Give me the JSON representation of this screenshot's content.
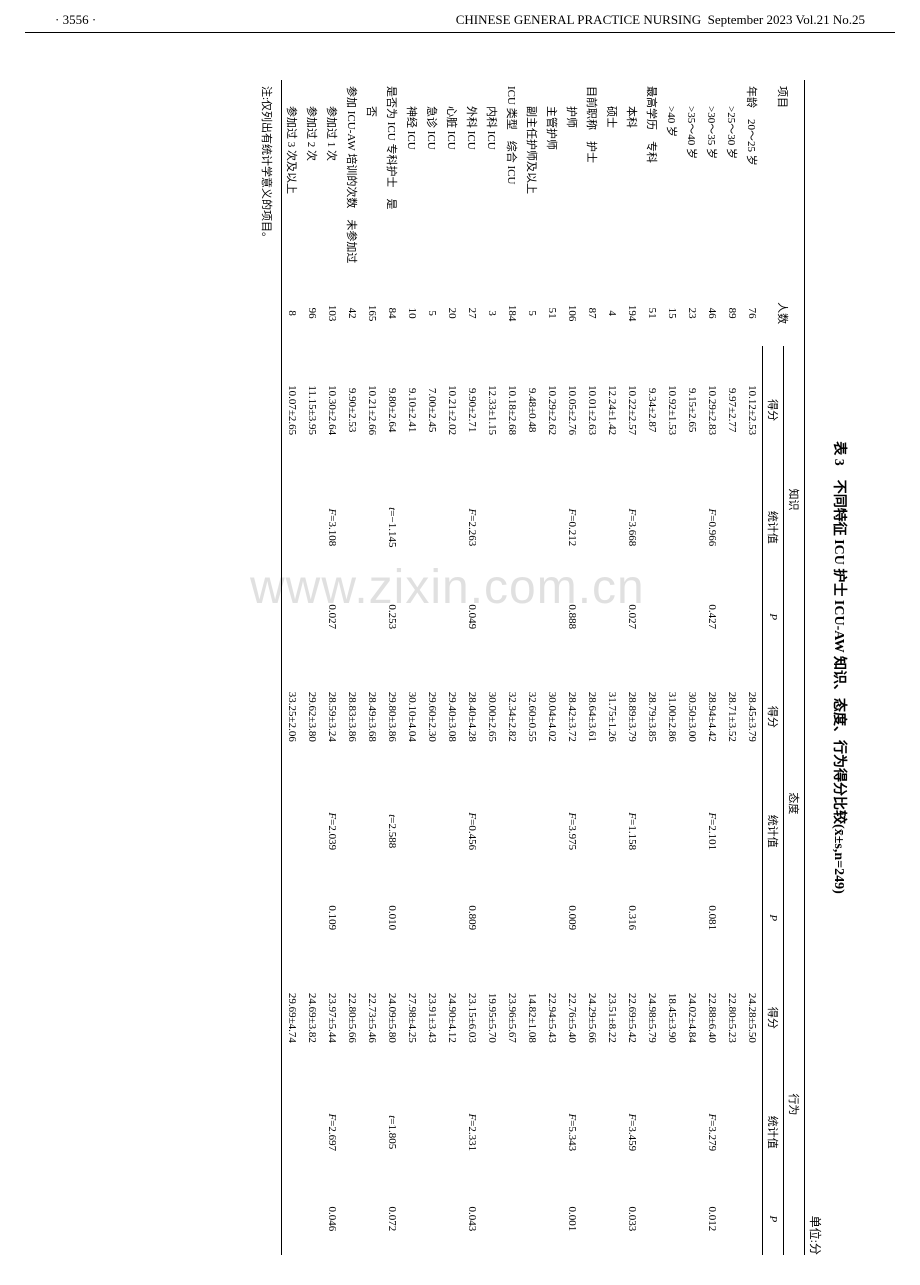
{
  "header": {
    "page_num": "· 3556 ·",
    "journal": "CHINESE GENERAL PRACTICE NURSING",
    "issue": "September 2023 Vol.21 No.25"
  },
  "watermark": "www.zixin.com.cn",
  "table": {
    "title": "表 3　不同特征 ICU 护士 ICU-AW 知识、态度、行为得分比较(x̄±s,n=249)",
    "unit": "单位:分",
    "head1": {
      "item": "项目",
      "n": "人数",
      "g1": "知识",
      "g2": "态度",
      "g3": "行为"
    },
    "head2": {
      "score": "得分",
      "stat": "统计值",
      "p": "P"
    },
    "note": "注:仅列出有统计学意义的项目。",
    "rows": [
      {
        "cat": "年龄",
        "lbl": "20～25 岁",
        "n": "76",
        "s1": "10.12±2.53",
        "st1": "",
        "p1": "",
        "s2": "28.45±3.79",
        "st2": "",
        "p2": "",
        "s3": "24.28±5.50",
        "st3": "",
        "p3": ""
      },
      {
        "cat": "",
        "lbl": ">25～30 岁",
        "n": "89",
        "s1": "9.97±2.77",
        "st1": "",
        "p1": "",
        "s2": "28.71±3.52",
        "st2": "",
        "p2": "",
        "s3": "22.80±5.23",
        "st3": "",
        "p3": ""
      },
      {
        "cat": "",
        "lbl": ">30～35 岁",
        "n": "46",
        "s1": "10.29±2.83",
        "st1": "F=0.966",
        "p1": "0.427",
        "s2": "28.94±4.42",
        "st2": "F=2.101",
        "p2": "0.081",
        "s3": "22.88±6.40",
        "st3": "F=3.279",
        "p3": "0.012"
      },
      {
        "cat": "",
        "lbl": ">35～40 岁",
        "n": "23",
        "s1": "9.15±2.65",
        "st1": "",
        "p1": "",
        "s2": "30.50±3.00",
        "st2": "",
        "p2": "",
        "s3": "24.02±4.84",
        "st3": "",
        "p3": ""
      },
      {
        "cat": "",
        "lbl": ">40 岁",
        "n": "15",
        "s1": "10.92±1.53",
        "st1": "",
        "p1": "",
        "s2": "31.00±2.86",
        "st2": "",
        "p2": "",
        "s3": "18.45±3.90",
        "st3": "",
        "p3": ""
      },
      {
        "cat": "最高学历",
        "lbl": "专科",
        "n": "51",
        "s1": "9.34±2.87",
        "st1": "",
        "p1": "",
        "s2": "28.79±3.85",
        "st2": "",
        "p2": "",
        "s3": "24.98±5.79",
        "st3": "",
        "p3": ""
      },
      {
        "cat": "",
        "lbl": "本科",
        "n": "194",
        "s1": "10.22±2.57",
        "st1": "F=3.668",
        "p1": "0.027",
        "s2": "28.89±3.79",
        "st2": "F=1.158",
        "p2": "0.316",
        "s3": "22.69±5.42",
        "st3": "F=3.459",
        "p3": "0.033"
      },
      {
        "cat": "",
        "lbl": "硕士",
        "n": "4",
        "s1": "12.24±1.42",
        "st1": "",
        "p1": "",
        "s2": "31.75±1.26",
        "st2": "",
        "p2": "",
        "s3": "23.51±8.22",
        "st3": "",
        "p3": ""
      },
      {
        "cat": "目前职称",
        "lbl": "护士",
        "n": "87",
        "s1": "10.01±2.63",
        "st1": "",
        "p1": "",
        "s2": "28.64±3.61",
        "st2": "",
        "p2": "",
        "s3": "24.29±5.66",
        "st3": "",
        "p3": ""
      },
      {
        "cat": "",
        "lbl": "护师",
        "n": "106",
        "s1": "10.05±2.76",
        "st1": "F=0.212",
        "p1": "0.888",
        "s2": "28.42±3.72",
        "st2": "F=3.975",
        "p2": "0.009",
        "s3": "22.76±5.40",
        "st3": "F=5.343",
        "p3": "0.001"
      },
      {
        "cat": "",
        "lbl": "主管护师",
        "n": "51",
        "s1": "10.29±2.62",
        "st1": "",
        "p1": "",
        "s2": "30.04±4.02",
        "st2": "",
        "p2": "",
        "s3": "22.94±5.43",
        "st3": "",
        "p3": ""
      },
      {
        "cat": "",
        "lbl": "副主任护师及以上",
        "n": "5",
        "s1": "9.48±0.48",
        "st1": "",
        "p1": "",
        "s2": "32.60±0.55",
        "st2": "",
        "p2": "",
        "s3": "14.82±1.08",
        "st3": "",
        "p3": ""
      },
      {
        "cat": "ICU 类型",
        "lbl": "综合 ICU",
        "n": "184",
        "s1": "10.18±2.68",
        "st1": "",
        "p1": "",
        "s2": "32.34±2.82",
        "st2": "",
        "p2": "",
        "s3": "23.96±5.67",
        "st3": "",
        "p3": ""
      },
      {
        "cat": "",
        "lbl": "内科 ICU",
        "n": "3",
        "s1": "12.33±1.15",
        "st1": "",
        "p1": "",
        "s2": "30.00±2.65",
        "st2": "",
        "p2": "",
        "s3": "19.95±5.70",
        "st3": "",
        "p3": ""
      },
      {
        "cat": "",
        "lbl": "外科 ICU",
        "n": "27",
        "s1": "9.90±2.71",
        "st1": "F=2.263",
        "p1": "0.049",
        "s2": "28.40±4.28",
        "st2": "F=0.456",
        "p2": "0.809",
        "s3": "23.15±6.03",
        "st3": "F=2.331",
        "p3": "0.043"
      },
      {
        "cat": "",
        "lbl": "心脏 ICU",
        "n": "20",
        "s1": "10.21±2.02",
        "st1": "",
        "p1": "",
        "s2": "29.40±3.08",
        "st2": "",
        "p2": "",
        "s3": "24.90±4.12",
        "st3": "",
        "p3": ""
      },
      {
        "cat": "",
        "lbl": "急诊 ICU",
        "n": "5",
        "s1": "7.00±2.45",
        "st1": "",
        "p1": "",
        "s2": "29.60±2.30",
        "st2": "",
        "p2": "",
        "s3": "23.91±3.43",
        "st3": "",
        "p3": ""
      },
      {
        "cat": "",
        "lbl": "神经 ICU",
        "n": "10",
        "s1": "9.10±2.41",
        "st1": "",
        "p1": "",
        "s2": "30.10±4.04",
        "st2": "",
        "p2": "",
        "s3": "27.98±4.25",
        "st3": "",
        "p3": ""
      },
      {
        "cat": "是否为 ICU 专科护士",
        "lbl": "是",
        "n": "84",
        "s1": "9.80±2.64",
        "st1": "t=−1.145",
        "p1": "0.253",
        "s2": "29.80±3.86",
        "st2": "t=2.588",
        "p2": "0.010",
        "s3": "24.09±5.80",
        "st3": "t=1.805",
        "p3": "0.072"
      },
      {
        "cat": "",
        "lbl": "否",
        "n": "165",
        "s1": "10.21±2.66",
        "st1": "",
        "p1": "",
        "s2": "28.49±3.68",
        "st2": "",
        "p2": "",
        "s3": "22.73±5.46",
        "st3": "",
        "p3": ""
      },
      {
        "cat": "参加 ICU-AW 培训的次数",
        "lbl": "未参加过",
        "n": "42",
        "s1": "9.90±2.53",
        "st1": "",
        "p1": "",
        "s2": "28.83±3.86",
        "st2": "",
        "p2": "",
        "s3": "22.80±5.66",
        "st3": "",
        "p3": ""
      },
      {
        "cat": "",
        "lbl": "参加过 1 次",
        "n": "103",
        "s1": "10.30±2.64",
        "st1": "F=3.108",
        "p1": "0.027",
        "s2": "28.59±3.24",
        "st2": "F=2.039",
        "p2": "0.109",
        "s3": "23.97±5.44",
        "st3": "F=2.697",
        "p3": "0.046"
      },
      {
        "cat": "",
        "lbl": "参加过 2 次",
        "n": "96",
        "s1": "11.15±3.95",
        "st1": "",
        "p1": "",
        "s2": "29.62±3.80",
        "st2": "",
        "p2": "",
        "s3": "24.69±3.82",
        "st3": "",
        "p3": ""
      },
      {
        "cat": "",
        "lbl": "参加过 3 次及以上",
        "n": "8",
        "s1": "10.07±2.65",
        "st1": "",
        "p1": "",
        "s2": "33.25±2.06",
        "st2": "",
        "p2": "",
        "s3": "29.69±4.74",
        "st3": "",
        "p3": ""
      }
    ]
  }
}
